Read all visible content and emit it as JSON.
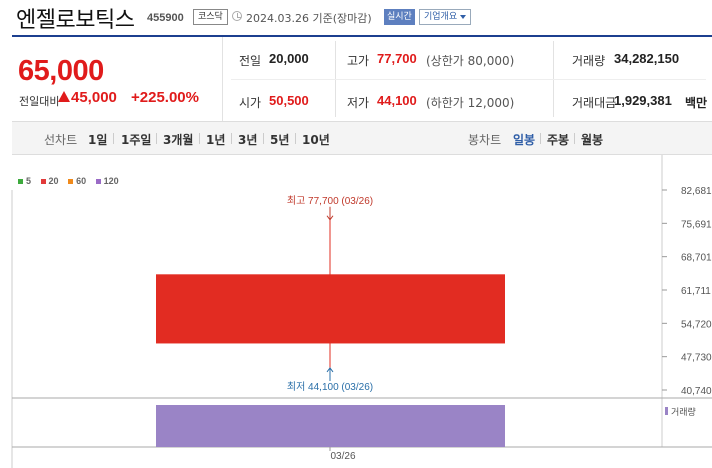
{
  "header": {
    "stock_name": "엔젤로보틱스",
    "stock_code": "455900",
    "market": "코스닥",
    "timestamp": "2024.03.26 기준(장마감)",
    "realtime_label": "실시간",
    "company_label": "기업개요"
  },
  "summary": {
    "price": "65,000",
    "change_label": "전일대비",
    "change_value": "45,000",
    "change_pct": "+225.00%",
    "prev_close": {
      "label": "전일",
      "value": "20,000"
    },
    "high": {
      "label": "고가",
      "value": "77,700",
      "sub": "(상한가 80,000)"
    },
    "volume": {
      "label": "거래량",
      "value": "34,282,150"
    },
    "open": {
      "label": "시가",
      "value": "50,500"
    },
    "low": {
      "label": "저가",
      "value": "44,100",
      "sub": "(하한가 12,000)"
    },
    "trade_amount": {
      "label": "거래대금",
      "value": "1,929,381",
      "unit": "백만"
    }
  },
  "toolbar": {
    "line_chart_label": "선차트",
    "line_periods": [
      "1일",
      "1주일",
      "3개월",
      "1년",
      "3년",
      "5년",
      "10년"
    ],
    "candle_chart_label": "봉차트",
    "candle_periods": [
      "일봉",
      "주봉",
      "월봉"
    ],
    "active_candle": "일봉"
  },
  "legend": [
    {
      "label": "5",
      "color": "#3daa3d"
    },
    {
      "label": "20",
      "color": "#e23a3a"
    },
    {
      "label": "60",
      "color": "#f08a1c"
    },
    {
      "label": "120",
      "color": "#9a6bc6"
    }
  ],
  "colors": {
    "up": "#e01b1b",
    "candle": "#e22c22",
    "volume": "#9a84c6",
    "high_annot": "#c0392b",
    "low_annot": "#2a6fa8",
    "accent": "#1c3f8f"
  },
  "chart_data": {
    "type": "candlestick",
    "x": [
      "03/26"
    ],
    "open": [
      50500
    ],
    "high": [
      77700
    ],
    "low": [
      44100
    ],
    "close": [
      65000
    ],
    "volume": [
      34282150
    ],
    "y_ticks": [
      82681,
      75691,
      68701,
      61711,
      54720,
      47730,
      40740
    ],
    "y_tick_labels": [
      "82,681",
      "75,691",
      "68,701",
      "61,711",
      "54,720",
      "47,730",
      "40,740"
    ],
    "ylim": [
      40740,
      82681
    ],
    "high_annotation": "최고 77,700 (03/26)",
    "low_annotation": "최저 44,100 (03/26)",
    "volume_legend": "거래량",
    "x_label": "03/26"
  }
}
